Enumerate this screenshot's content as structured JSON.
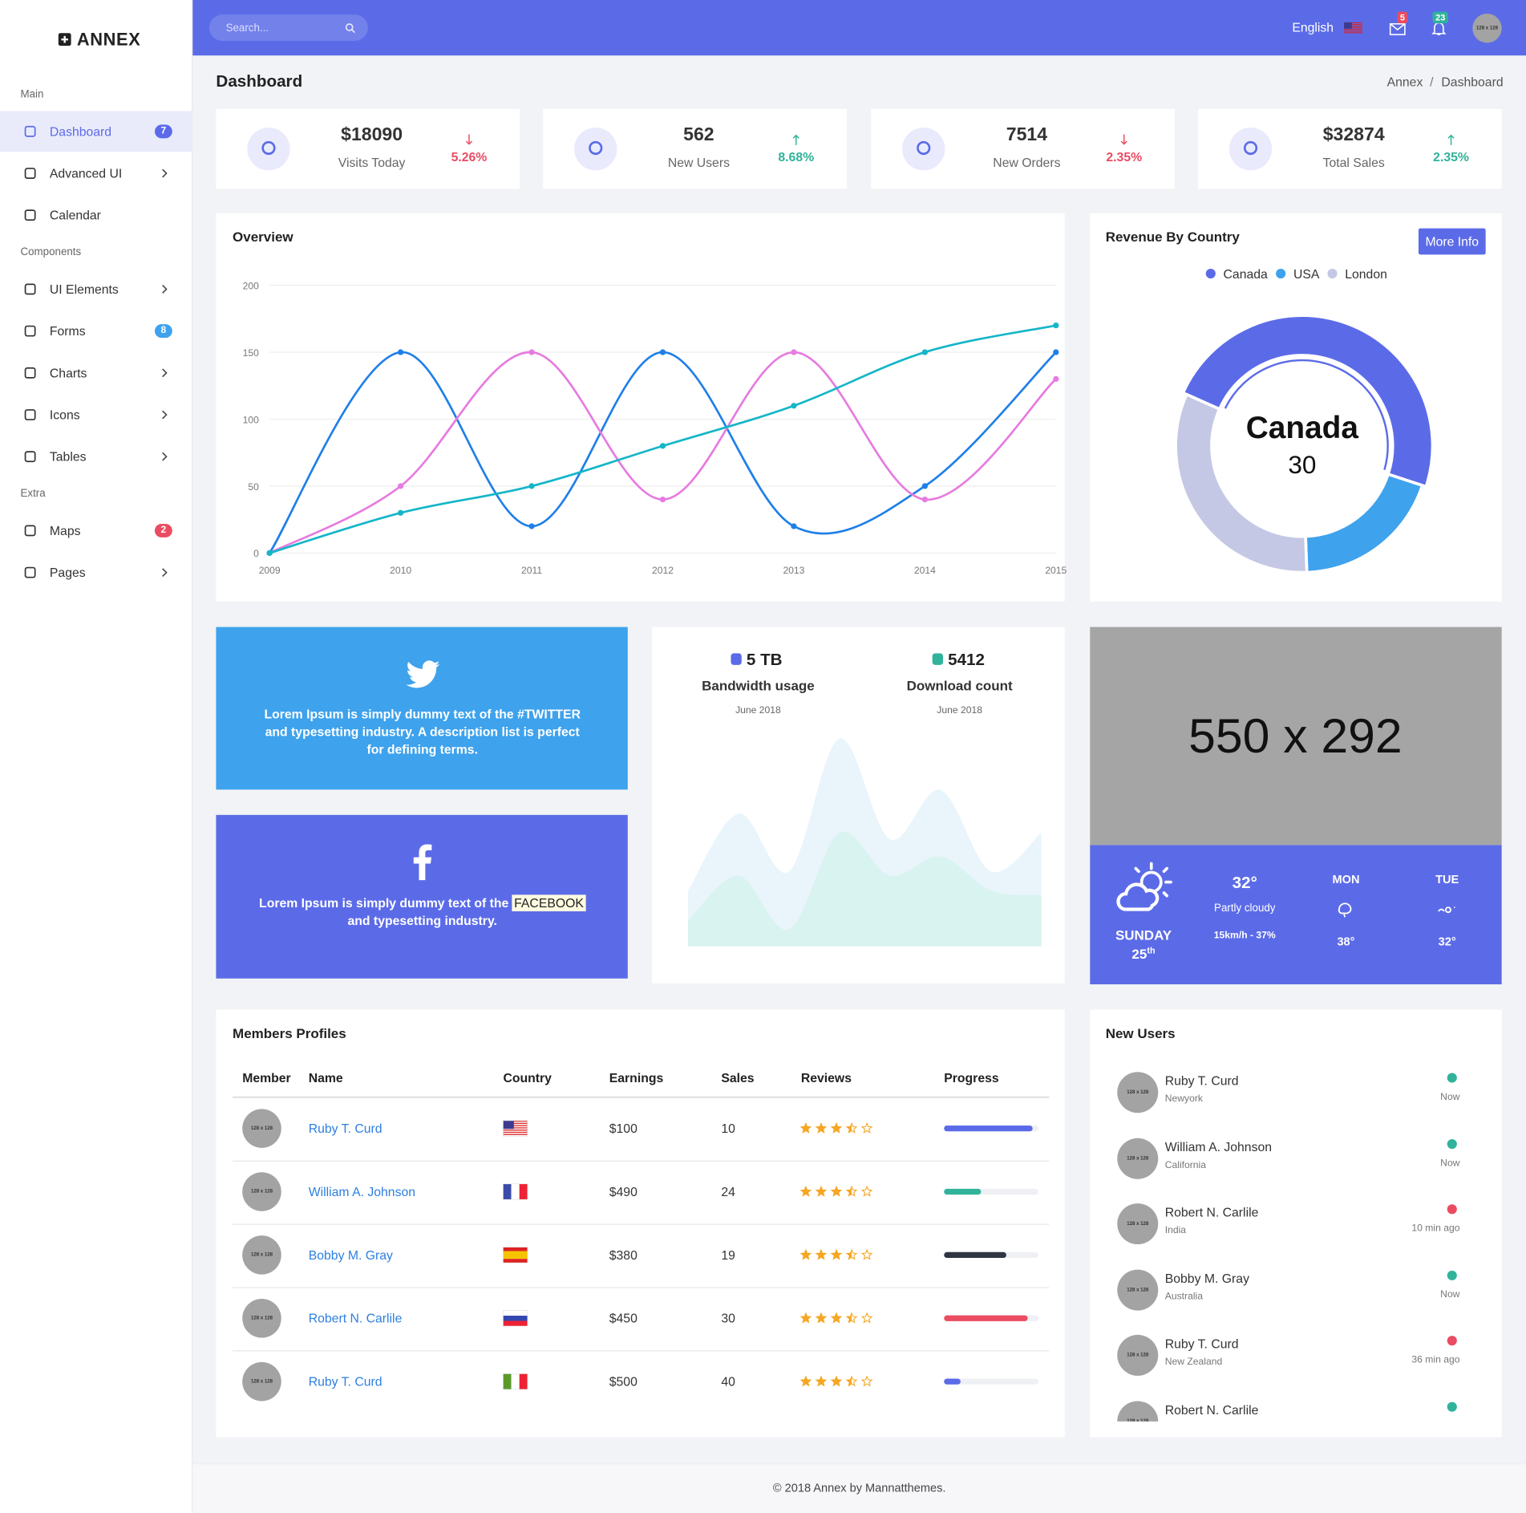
{
  "brand": "ANNEX",
  "sidebar": {
    "active_color": "#5b6be8",
    "sections": [
      {
        "title": "Main",
        "items": [
          {
            "label": "Dashboard",
            "badge": "7",
            "badge_color": "#5b6be8",
            "active": true
          },
          {
            "label": "Advanced UI",
            "submenu": true
          },
          {
            "label": "Calendar"
          }
        ]
      },
      {
        "title": "Components",
        "items": [
          {
            "label": "UI Elements",
            "submenu": true
          },
          {
            "label": "Forms",
            "badge": "8",
            "badge_color": "#3ea2ed"
          },
          {
            "label": "Charts",
            "submenu": true
          },
          {
            "label": "Icons",
            "submenu": true
          },
          {
            "label": "Tables",
            "submenu": true
          }
        ]
      },
      {
        "title": "Extra",
        "items": [
          {
            "label": "Maps",
            "badge": "2",
            "badge_color": "#ea4c62"
          },
          {
            "label": "Pages",
            "submenu": true
          }
        ]
      }
    ]
  },
  "topbar": {
    "color": "#5b6be8",
    "search_placeholder": "Search...",
    "language": "English",
    "mail_badge": "5",
    "notification_badge": "23",
    "avatar": "128 x 128"
  },
  "page": {
    "title": "Dashboard",
    "breadcrumb": [
      "Annex",
      "Dashboard"
    ],
    "breadcrumb_separator": "/"
  },
  "stats": [
    {
      "value": "$18090",
      "label": "Visits Today",
      "change": "5.26%",
      "trend": "down"
    },
    {
      "value": "562",
      "label": "New Users",
      "change": "8.68%",
      "trend": "up"
    },
    {
      "value": "7514",
      "label": "New Orders",
      "change": "2.35%",
      "trend": "down"
    },
    {
      "value": "$32874",
      "label": "Total Sales",
      "change": "2.35%",
      "trend": "up"
    }
  ],
  "revenue_button": "More Info",
  "chart_data": [
    {
      "type": "line",
      "title": "Overview",
      "x": [
        2009,
        2010,
        2011,
        2012,
        2013,
        2014,
        2015
      ],
      "xlim": [
        2009,
        2015
      ],
      "xticks": [
        2009,
        2010,
        2011,
        2012,
        2013,
        2014,
        2015
      ],
      "ylim": [
        0,
        200
      ],
      "yticks": [
        0,
        50,
        100,
        150,
        200
      ],
      "grid": true,
      "series": [
        {
          "color": "#1e7fe9",
          "values": [
            0,
            150,
            20,
            150,
            20,
            50,
            150
          ]
        },
        {
          "color": "#e67be0",
          "values": [
            0,
            50,
            150,
            40,
            150,
            40,
            130
          ]
        },
        {
          "color": "#14b6c8",
          "values": [
            0,
            30,
            50,
            80,
            110,
            150,
            170
          ]
        }
      ]
    },
    {
      "type": "donut",
      "title": "Revenue By Country",
      "categories": [
        "Canada",
        "USA",
        "London"
      ],
      "values": [
        30,
        12,
        20
      ],
      "colors": [
        "#5b6be8",
        "#3ea2ed",
        "#c5c8e4"
      ],
      "highlight": 0,
      "legend": "top"
    },
    {
      "type": "area",
      "ylim": [
        0,
        100
      ],
      "series": [
        {
          "color": "#e9f5fb",
          "values": [
            26,
            62,
            35,
            97,
            50,
            73,
            35,
            53
          ]
        },
        {
          "color": "#d9f3f1",
          "values": [
            12,
            33,
            8,
            53,
            33,
            42,
            26,
            24
          ]
        }
      ]
    }
  ],
  "twitter": {
    "text": "Lorem Ipsum is simply dummy text of the #TWITTER and typesetting industry. A description list is perfect for defining terms.",
    "color": "#3ea2ed"
  },
  "facebook": {
    "text_before": "Lorem Ipsum is simply dummy text of the",
    "highlight": "FACEBOOK",
    "text_after": "and typesetting industry.",
    "color": "#5b6be8"
  },
  "bandwidth_stats": [
    {
      "value": "5 TB",
      "label": "Bandwidth usage",
      "date": "June 2018"
    },
    {
      "value": "5412",
      "label": "Download count",
      "date": "June 2018"
    }
  ],
  "placeholder": "550 x 292",
  "weather": {
    "day": "SUNDAY",
    "date": "25",
    "date_suffix": "th",
    "temp": "32°",
    "condition": "Partly cloudy",
    "wind": "15km/h - 37%",
    "forecast": [
      {
        "day": "MON",
        "temp": "38°"
      },
      {
        "day": "TUE",
        "temp": "32°"
      }
    ]
  },
  "members": {
    "title": "Members Profiles",
    "columns": [
      "Member",
      "Name",
      "Country",
      "Earnings",
      "Sales",
      "Reviews",
      "Progress"
    ],
    "rows": [
      {
        "avatar": "128 x 128",
        "name": "Ruby T. Curd",
        "flag": "us",
        "earnings": "$100",
        "sales": "10",
        "rating": 3.5,
        "progress": 94,
        "progress_color": "#5b6be8"
      },
      {
        "avatar": "128 x 128",
        "name": "William A. Johnson",
        "flag": "fr",
        "earnings": "$490",
        "sales": "24",
        "rating": 3.5,
        "progress": 39,
        "progress_color": "#30b39a"
      },
      {
        "avatar": "128 x 128",
        "name": "Bobby M. Gray",
        "flag": "es",
        "earnings": "$380",
        "sales": "19",
        "rating": 3.5,
        "progress": 66,
        "progress_color": "#2f3542"
      },
      {
        "avatar": "128 x 128",
        "name": "Robert N. Carlile",
        "flag": "ru",
        "earnings": "$450",
        "sales": "30",
        "rating": 3.5,
        "progress": 89,
        "progress_color": "#ea4c62"
      },
      {
        "avatar": "128 x 128",
        "name": "Ruby T. Curd",
        "flag": "it",
        "earnings": "$500",
        "sales": "40",
        "rating": 3.5,
        "progress": 18,
        "progress_color": "#5b6be8"
      }
    ]
  },
  "new_users": {
    "title": "New Users",
    "items": [
      {
        "avatar": "128 x 128",
        "name": "Ruby T. Curd",
        "location": "Newyork",
        "time": "Now",
        "status_color": "#30b39a"
      },
      {
        "avatar": "128 x 128",
        "name": "William A. Johnson",
        "location": "California",
        "time": "Now",
        "status_color": "#30b39a"
      },
      {
        "avatar": "128 x 128",
        "name": "Robert N. Carlile",
        "location": "India",
        "time": "10 min ago",
        "status_color": "#ea4c62"
      },
      {
        "avatar": "128 x 128",
        "name": "Bobby M. Gray",
        "location": "Australia",
        "time": "Now",
        "status_color": "#30b39a"
      },
      {
        "avatar": "128 x 128",
        "name": "Ruby T. Curd",
        "location": "New Zealand",
        "time": "36 min ago",
        "status_color": "#ea4c62"
      },
      {
        "avatar": "128 x 128",
        "name": "Robert N. Carlile",
        "status_color": "#30b39a"
      }
    ]
  },
  "footer": "© 2018 Annex by Mannatthemes."
}
